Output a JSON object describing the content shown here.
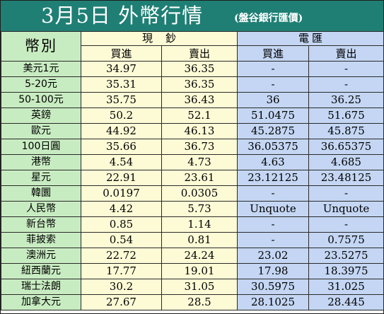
{
  "title": {
    "main": "3月5日 外幣行情",
    "sub": "(盤谷銀行匯價)"
  },
  "header": {
    "currency_label": "幣別",
    "cash_chars": [
      "現",
      "鈔"
    ],
    "wire_chars": [
      "電",
      "匯"
    ],
    "buy_label": "買進",
    "sell_label": "賣出"
  },
  "rows": [
    {
      "currency": "美元1元",
      "cash_buy": "34.97",
      "cash_sell": "36.35",
      "wire_buy": "-",
      "wire_sell": "-"
    },
    {
      "currency": "5-20元",
      "cash_buy": "35.31",
      "cash_sell": "36.35",
      "wire_buy": "-",
      "wire_sell": "-"
    },
    {
      "currency": "50-100元",
      "cash_buy": "35.75",
      "cash_sell": "36.43",
      "wire_buy": "36",
      "wire_sell": "36.25"
    },
    {
      "currency": "英鎊",
      "cash_buy": "50.2",
      "cash_sell": "52.1",
      "wire_buy": "51.0475",
      "wire_sell": "51.675"
    },
    {
      "currency": "歐元",
      "cash_buy": "44.92",
      "cash_sell": "46.13",
      "wire_buy": "45.2875",
      "wire_sell": "45.875"
    },
    {
      "currency": "100日圓",
      "cash_buy": "35.66",
      "cash_sell": "36.73",
      "wire_buy": "36.05375",
      "wire_sell": "36.65375"
    },
    {
      "currency": "港幣",
      "cash_buy": "4.54",
      "cash_sell": "4.73",
      "wire_buy": "4.63",
      "wire_sell": "4.685"
    },
    {
      "currency": "星元",
      "cash_buy": "22.91",
      "cash_sell": "23.61",
      "wire_buy": "23.12125",
      "wire_sell": "23.48125"
    },
    {
      "currency": "韓圜",
      "cash_buy": "0.0197",
      "cash_sell": "0.0305",
      "wire_buy": "-",
      "wire_sell": "-"
    },
    {
      "currency": "人民幣",
      "cash_buy": "4.42",
      "cash_sell": "5.73",
      "wire_buy": "Unquote",
      "wire_sell": "Unquote"
    },
    {
      "currency": "新台幣",
      "cash_buy": "0.85",
      "cash_sell": "1.14",
      "wire_buy": "-",
      "wire_sell": "-"
    },
    {
      "currency": "菲披索",
      "cash_buy": "0.54",
      "cash_sell": "0.81",
      "wire_buy": "-",
      "wire_sell": "0.7575"
    },
    {
      "currency": "澳洲元",
      "cash_buy": "22.72",
      "cash_sell": "24.24",
      "wire_buy": "23.02",
      "wire_sell": "23.5275"
    },
    {
      "currency": "紐西蘭元",
      "cash_buy": "17.77",
      "cash_sell": "19.01",
      "wire_buy": "17.98",
      "wire_sell": "18.3975"
    },
    {
      "currency": "瑞士法朗",
      "cash_buy": "30.2",
      "cash_sell": "31.05",
      "wire_buy": "30.5975",
      "wire_sell": "31.025"
    },
    {
      "currency": "加拿大元",
      "cash_buy": "27.67",
      "cash_sell": "28.5",
      "wire_buy": "28.1025",
      "wire_sell": "28.445"
    }
  ],
  "colors": {
    "title_bg": "#1f7f74",
    "label_bg": "#c8ecc1",
    "cash_bg": "#fdfbd6",
    "wire_bg": "#c4d6f3"
  }
}
